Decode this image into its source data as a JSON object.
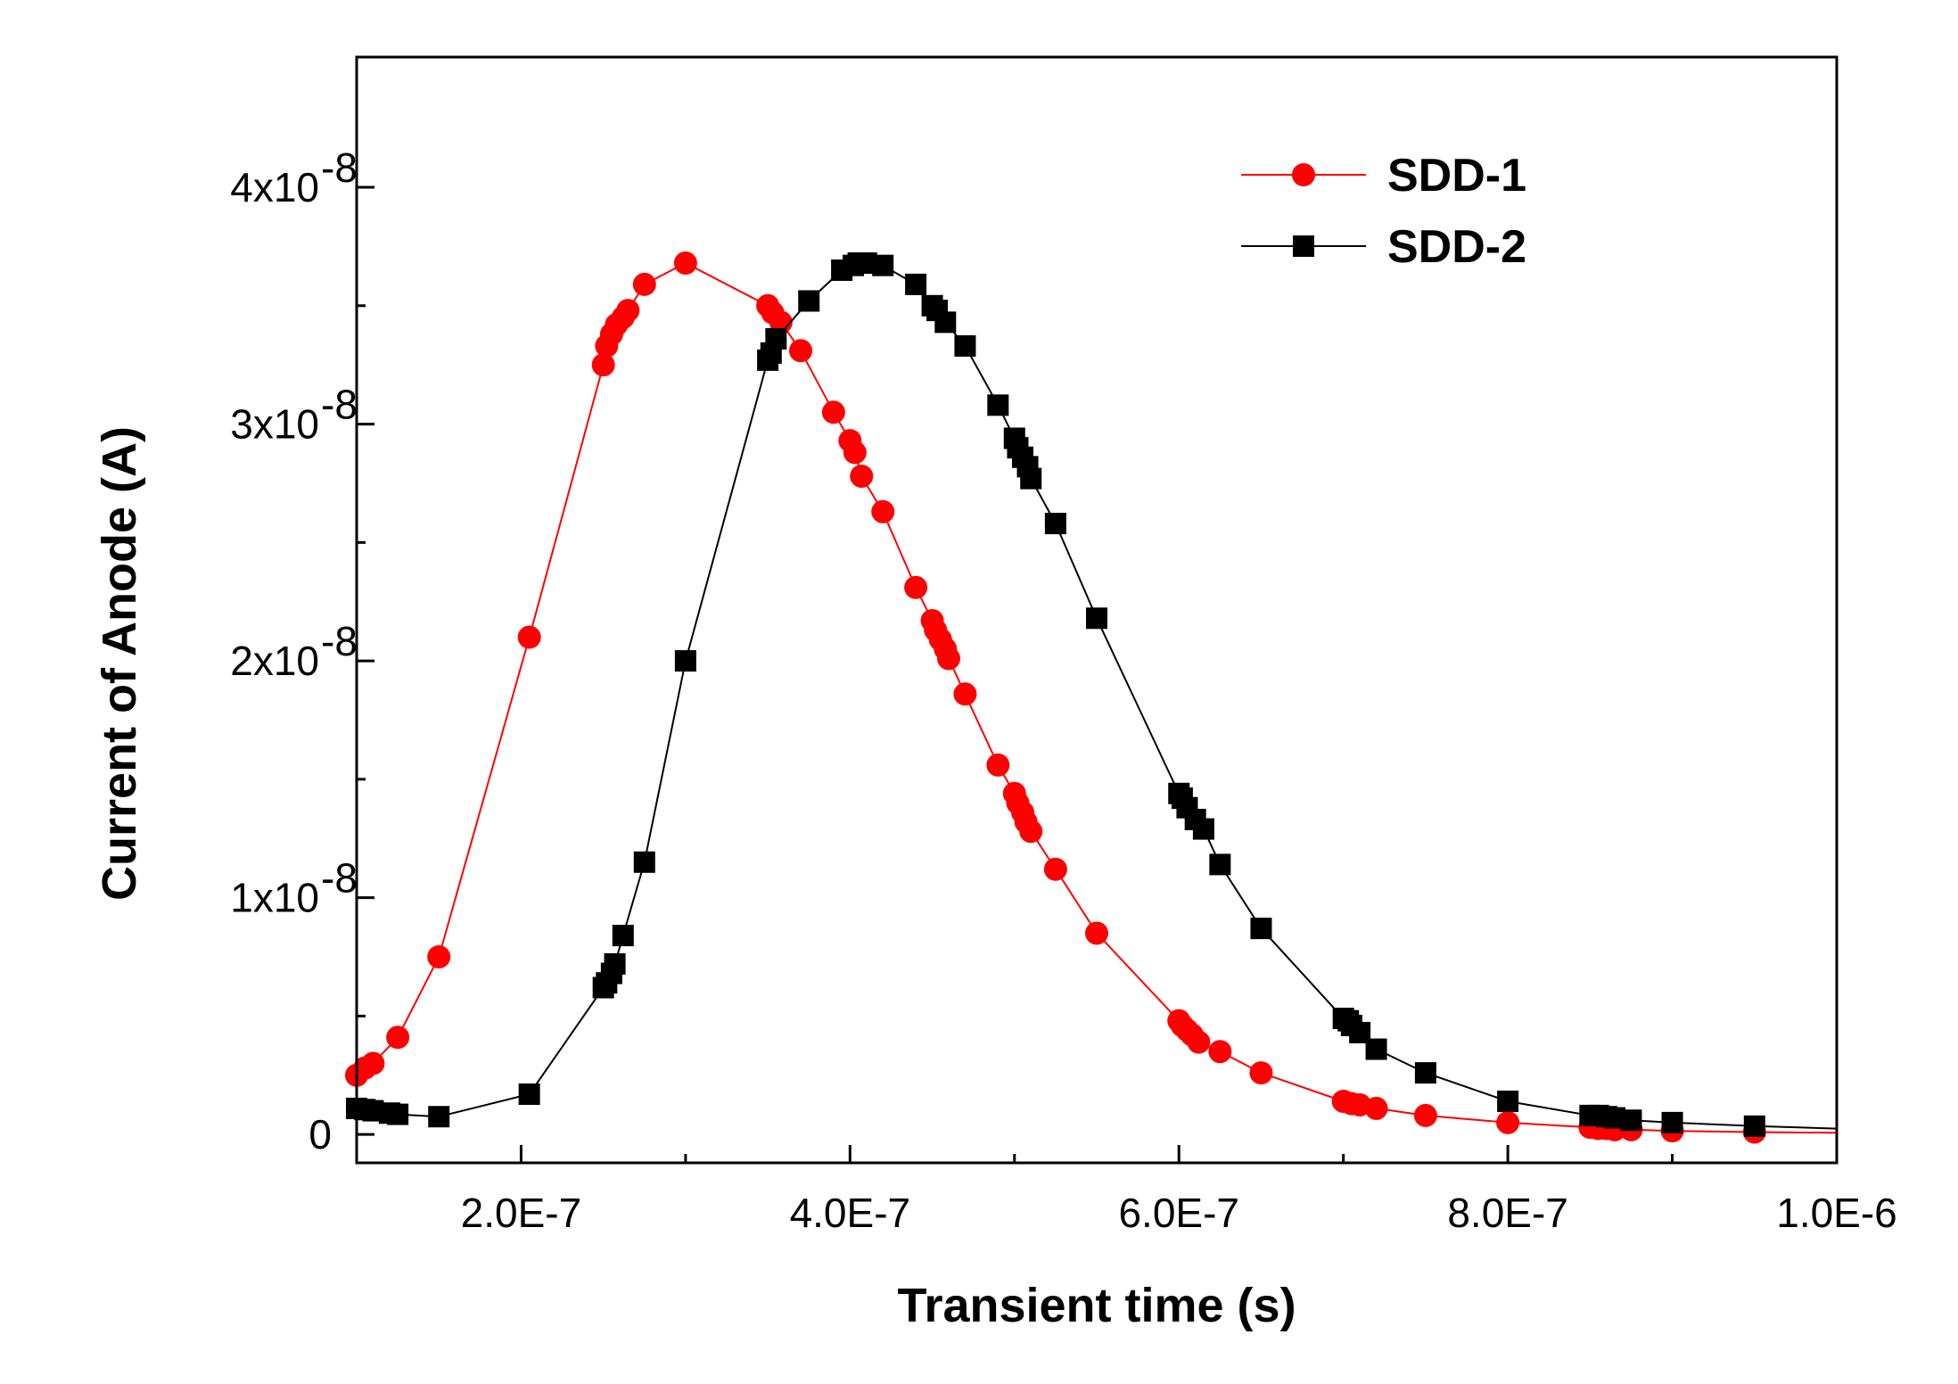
{
  "chart_data": {
    "type": "line",
    "title": "",
    "xlabel": "Transient time (s)",
    "ylabel": "Current of Anode (A)",
    "xlim": [
      1e-07,
      1e-06
    ],
    "ylim": [
      -1.2e-09,
      4.55e-08
    ],
    "x_ticks": [
      {
        "value": 2e-07,
        "label": "2.0E-7"
      },
      {
        "value": 4e-07,
        "label": "4.0E-7"
      },
      {
        "value": 6e-07,
        "label": "6.0E-7"
      },
      {
        "value": 8e-07,
        "label": "8.0E-7"
      },
      {
        "value": 1e-06,
        "label": "1.0E-6"
      }
    ],
    "y_ticks": [
      {
        "value": 0,
        "base": "0",
        "exp": ""
      },
      {
        "value": 1e-08,
        "base": "1x10",
        "exp": "-8"
      },
      {
        "value": 2e-08,
        "base": "2x10",
        "exp": "-8"
      },
      {
        "value": 3e-08,
        "base": "3x10",
        "exp": "-8"
      },
      {
        "value": 4e-08,
        "base": "4x10",
        "exp": "-8"
      }
    ],
    "grid": false,
    "legend_position": "top-right",
    "series": [
      {
        "name": "SDD-1",
        "color": "#ff0000",
        "marker": "circle",
        "x": [
          1e-07,
          1.05e-07,
          1.1e-07,
          1.25e-07,
          1.5e-07,
          2.05e-07,
          2.5e-07,
          2.52e-07,
          2.55e-07,
          2.58e-07,
          2.62e-07,
          2.65e-07,
          2.75e-07,
          3e-07,
          3.5e-07,
          3.53e-07,
          3.58e-07,
          3.7e-07,
          3.9e-07,
          4e-07,
          4.03e-07,
          4.07e-07,
          4.2e-07,
          4.4e-07,
          4.5e-07,
          4.52e-07,
          4.55e-07,
          4.58e-07,
          4.6e-07,
          4.7e-07,
          4.9e-07,
          5e-07,
          5.02e-07,
          5.05e-07,
          5.07e-07,
          5.1e-07,
          5.25e-07,
          5.5e-07,
          6e-07,
          6.02e-07,
          6.05e-07,
          6.08e-07,
          6.12e-07,
          6.25e-07,
          6.5e-07,
          7e-07,
          7.05e-07,
          7.1e-07,
          7.2e-07,
          7.5e-07,
          8e-07,
          8.5e-07,
          8.55e-07,
          8.6e-07,
          8.65e-07,
          8.75e-07,
          9e-07,
          9.5e-07
        ],
        "y": [
          2.5e-09,
          2.8e-09,
          3e-09,
          4.1e-09,
          7.5e-09,
          2.1e-08,
          3.25e-08,
          3.33e-08,
          3.38e-08,
          3.42e-08,
          3.45e-08,
          3.48e-08,
          3.59e-08,
          3.68e-08,
          3.5e-08,
          3.47e-08,
          3.43e-08,
          3.31e-08,
          3.05e-08,
          2.93e-08,
          2.88e-08,
          2.78e-08,
          2.63e-08,
          2.31e-08,
          2.17e-08,
          2.13e-08,
          2.09e-08,
          2.05e-08,
          2.01e-08,
          1.86e-08,
          1.56e-08,
          1.44e-08,
          1.4e-08,
          1.36e-08,
          1.32e-08,
          1.28e-08,
          1.12e-08,
          8.5e-09,
          4.8e-09,
          4.6e-09,
          4.4e-09,
          4.2e-09,
          3.9e-09,
          3.5e-09,
          2.6e-09,
          1.4e-09,
          1.3e-09,
          1.25e-09,
          1.1e-09,
          8e-10,
          5e-10,
          3e-10,
          2.5e-10,
          2.5e-10,
          2e-10,
          2e-10,
          1.5e-10,
          1e-10
        ]
      },
      {
        "name": "SDD-2",
        "color": "#000000",
        "marker": "square",
        "x": [
          1e-07,
          1.05e-07,
          1.1e-07,
          1.2e-07,
          1.25e-07,
          1.5e-07,
          2.05e-07,
          2.5e-07,
          2.52e-07,
          2.55e-07,
          2.57e-07,
          2.62e-07,
          2.75e-07,
          3e-07,
          3.5e-07,
          3.52e-07,
          3.55e-07,
          3.75e-07,
          3.95e-07,
          4.02e-07,
          4.05e-07,
          4.1e-07,
          4.2e-07,
          4.4e-07,
          4.5e-07,
          4.53e-07,
          4.58e-07,
          4.7e-07,
          4.9e-07,
          5e-07,
          5.02e-07,
          5.05e-07,
          5.08e-07,
          5.1e-07,
          5.25e-07,
          5.5e-07,
          6e-07,
          6.02e-07,
          6.05e-07,
          6.1e-07,
          6.15e-07,
          6.25e-07,
          6.5e-07,
          7e-07,
          7.03e-07,
          7.05e-07,
          7.1e-07,
          7.2e-07,
          7.5e-07,
          8e-07,
          8.5e-07,
          8.55e-07,
          8.6e-07,
          8.65e-07,
          8.75e-07,
          9e-07,
          9.5e-07
        ],
        "y": [
          1.1e-09,
          1.05e-09,
          1e-09,
          9e-10,
          8.5e-10,
          7.5e-10,
          1.7e-09,
          6.2e-09,
          6.4e-09,
          6.8e-09,
          7.2e-09,
          8.4e-09,
          1.15e-08,
          2e-08,
          3.27e-08,
          3.3e-08,
          3.36e-08,
          3.52e-08,
          3.65e-08,
          3.67e-08,
          3.68e-08,
          3.68e-08,
          3.67e-08,
          3.59e-08,
          3.5e-08,
          3.48e-08,
          3.43e-08,
          3.33e-08,
          3.08e-08,
          2.94e-08,
          2.9e-08,
          2.86e-08,
          2.82e-08,
          2.77e-08,
          2.58e-08,
          2.18e-08,
          1.44e-08,
          1.42e-08,
          1.38e-08,
          1.33e-08,
          1.29e-08,
          1.14e-08,
          8.7e-09,
          4.9e-09,
          4.8e-09,
          4.6e-09,
          4.3e-09,
          3.6e-09,
          2.6e-09,
          1.4e-09,
          8e-10,
          8e-10,
          7.5e-10,
          7e-10,
          6e-10,
          5e-10,
          3.5e-10
        ]
      }
    ]
  }
}
